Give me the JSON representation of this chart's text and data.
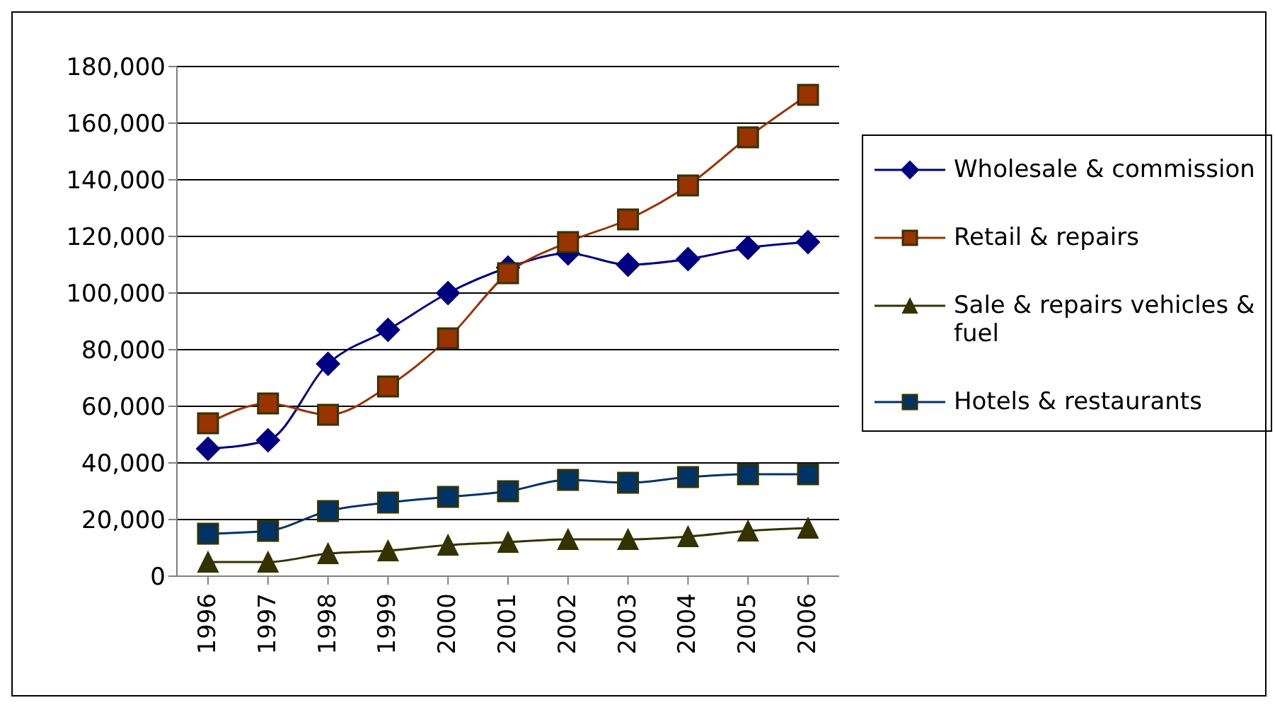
{
  "chart_data": {
    "type": "line",
    "categories": [
      "1996",
      "1997",
      "1998",
      "1999",
      "2000",
      "2001",
      "2002",
      "2003",
      "2004",
      "2005",
      "2006"
    ],
    "ylim": [
      0,
      180000
    ],
    "yticks": [
      {
        "value": 0,
        "label": "0"
      },
      {
        "value": 20000,
        "label": "20,000"
      },
      {
        "value": 40000,
        "label": "40,000"
      },
      {
        "value": 60000,
        "label": "60,000"
      },
      {
        "value": 80000,
        "label": "80,000"
      },
      {
        "value": 100000,
        "label": "100,000"
      },
      {
        "value": 120000,
        "label": "120,000"
      },
      {
        "value": 140000,
        "label": "140,000"
      },
      {
        "value": 160000,
        "label": "160,000"
      },
      {
        "value": 180000,
        "label": "180,000"
      }
    ],
    "grid": "y",
    "legend": "right",
    "series": [
      {
        "name": "Wholesale & commission",
        "color": "#000080",
        "marker": "diamond",
        "values": [
          45000,
          48000,
          75000,
          87000,
          100000,
          109000,
          114000,
          110000,
          112000,
          116000,
          118000
        ]
      },
      {
        "name": "Retail & repairs",
        "color": "#993300",
        "marker": "square",
        "values": [
          54000,
          61000,
          57000,
          67000,
          84000,
          107000,
          118000,
          126000,
          138000,
          155000,
          170000
        ]
      },
      {
        "name": "Sale & repairs vehicles & fuel",
        "color": "#333300",
        "marker": "triangle",
        "values": [
          5000,
          5000,
          8000,
          9000,
          11000,
          12000,
          13000,
          13000,
          14000,
          16000,
          17000
        ]
      },
      {
        "name": "Hotels & restaurants",
        "color": "#003366",
        "marker": "square",
        "values": [
          15000,
          16000,
          23000,
          26000,
          28000,
          30000,
          34000,
          33000,
          35000,
          36000,
          36000
        ]
      }
    ]
  }
}
